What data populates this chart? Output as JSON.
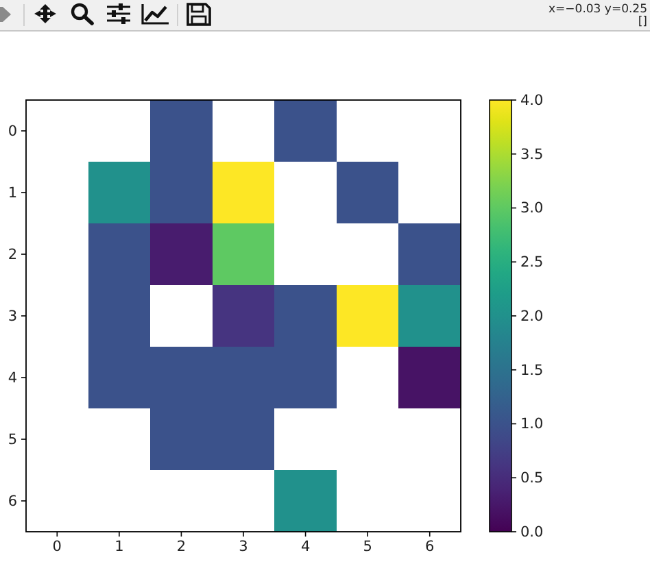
{
  "chart_data": {
    "type": "heatmap",
    "categories": [
      "0",
      "1",
      "2",
      "3",
      "4",
      "5",
      "6"
    ],
    "y_categories": [
      "0",
      "1",
      "2",
      "3",
      "4",
      "5",
      "6"
    ],
    "cells": [
      [
        null,
        null,
        1,
        null,
        1,
        null,
        null
      ],
      [
        null,
        2,
        1,
        4,
        null,
        1,
        null
      ],
      [
        null,
        1,
        0.3,
        3,
        null,
        null,
        1
      ],
      [
        null,
        1,
        null,
        0.6,
        1,
        4,
        2
      ],
      [
        null,
        1,
        1,
        1,
        1,
        null,
        0.2
      ],
      [
        null,
        null,
        1,
        1,
        null,
        null,
        null
      ],
      [
        null,
        null,
        null,
        null,
        2,
        null,
        null
      ]
    ],
    "clim": [
      0,
      4
    ],
    "cticks": [
      {
        "value": 0,
        "label": "0.0"
      },
      0.5,
      {
        "value": 1,
        "label": "1.0"
      },
      1.5,
      {
        "value": 2,
        "label": "2.0"
      },
      2.5,
      {
        "value": 3,
        "label": "3.0"
      },
      3.5,
      {
        "value": 4,
        "label": "4.0"
      }
    ],
    "annotations": [
      "x=−0.03 y=0.25",
      "[]"
    ]
  }
}
